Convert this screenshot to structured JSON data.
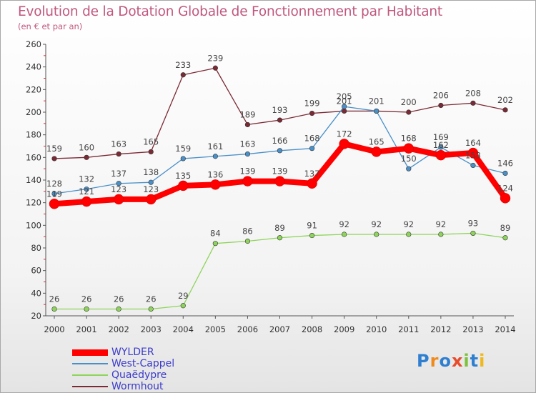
{
  "header": {
    "title": "Evolution de la Dotation Globale de Fonctionnement par Habitant",
    "subtitle": "(en € et par an)"
  },
  "logo": {
    "text": "Proxiti"
  },
  "chart_data": {
    "type": "line",
    "title": "Evolution de la Dotation Globale de Fonctionnement par Habitant",
    "subtitle": "(en € et par an)",
    "xlabel": "",
    "ylabel": "",
    "ylim": [
      20,
      260
    ],
    "yticks": [
      20,
      40,
      60,
      80,
      100,
      120,
      140,
      160,
      180,
      200,
      220,
      240,
      260
    ],
    "categories": [
      "2000",
      "2001",
      "2002",
      "2003",
      "2004",
      "2005",
      "2006",
      "2007",
      "2008",
      "2009",
      "2010",
      "2011",
      "2012",
      "2013",
      "2014"
    ],
    "grid": false,
    "legend_position": "bottom-left",
    "series": [
      {
        "name": "Wormhout",
        "color": "#7b2a35",
        "values": [
          159,
          160,
          163,
          165,
          233,
          239,
          189,
          193,
          199,
          201,
          201,
          200,
          206,
          208,
          202
        ]
      },
      {
        "name": "West-Cappel",
        "color": "#4a90c8",
        "values": [
          128,
          132,
          137,
          138,
          159,
          161,
          163,
          166,
          168,
          205,
          201,
          150,
          169,
          153,
          146
        ]
      },
      {
        "name": "Quaëdypre",
        "color": "#8ed45a",
        "values": [
          26,
          26,
          26,
          26,
          29,
          84,
          86,
          89,
          91,
          92,
          92,
          92,
          92,
          93,
          89
        ]
      },
      {
        "name": "WYLDER",
        "color": "#ff0000",
        "values": [
          119,
          121,
          123,
          123,
          135,
          136,
          139,
          139,
          137,
          172,
          165,
          168,
          162,
          164,
          124
        ]
      }
    ],
    "data_labels": {
      "Wormhout": [
        "159",
        "160",
        "163",
        "165",
        "233",
        "239",
        "189",
        "193",
        "199",
        "201",
        "201",
        "200",
        "206",
        "208",
        "202"
      ],
      "West-Cappel": [
        "128",
        "132",
        "137",
        "138",
        "159",
        "161",
        "163",
        "166",
        "168",
        "205",
        "",
        "150",
        "169",
        "153",
        "146"
      ],
      "Quaëdypre": [
        "26",
        "26",
        "26",
        "26",
        "29",
        "84",
        "86",
        "89",
        "91",
        "92",
        "92",
        "92",
        "92",
        "93",
        "89"
      ],
      "WYLDER": [
        "119",
        "121",
        "123",
        "123",
        "135",
        "136",
        "139",
        "139",
        "137",
        "172",
        "165",
        "168",
        "162",
        "164",
        "124"
      ]
    }
  },
  "legend": {
    "items": [
      {
        "label": "WYLDER",
        "color": "#ff0000"
      },
      {
        "label": "West-Cappel",
        "color": "#4a90c8"
      },
      {
        "label": "Quaëdypre",
        "color": "#8ed45a"
      },
      {
        "label": "Wormhout",
        "color": "#7b2a35"
      }
    ]
  }
}
